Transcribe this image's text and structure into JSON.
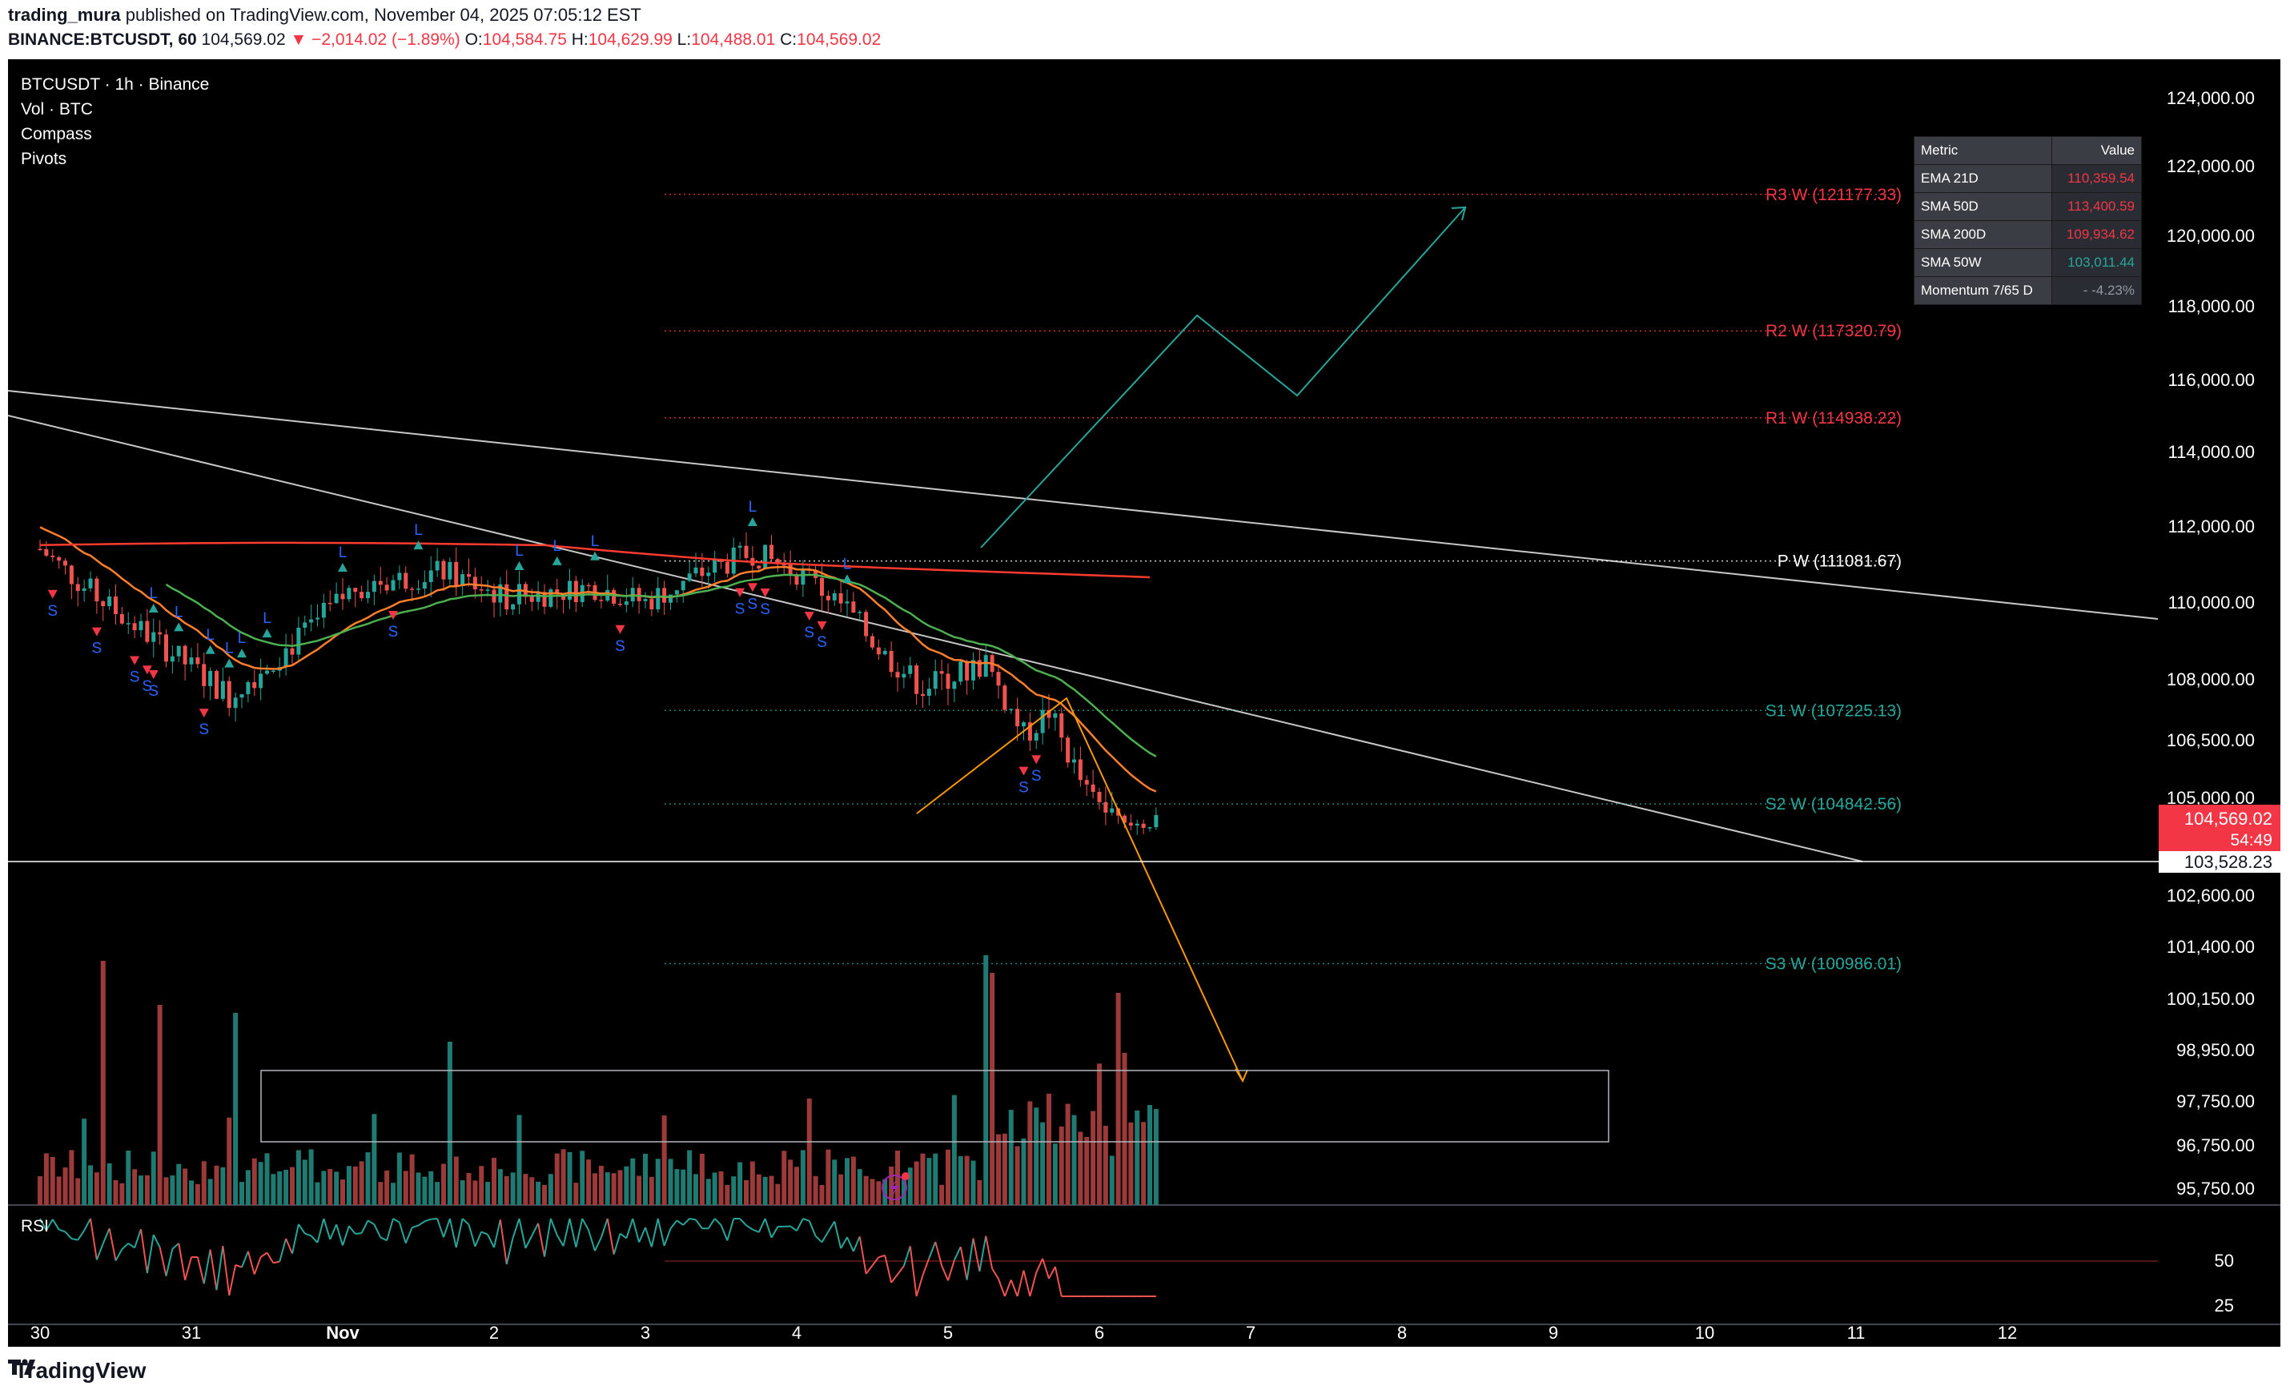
{
  "header": {
    "author": "trading_mura",
    "published_text": "published on TradingView.com, November 04, 2025 07:05:12 EST",
    "symbol": "BINANCE:BTCUSDT, 60",
    "last": "104,569.02",
    "change": "▼ −2,014.02 (−1.89%)",
    "open_label": "O:",
    "open": "104,584.75",
    "high_label": "H:",
    "high": "104,629.99",
    "low_label": "L:",
    "low": "104,488.01",
    "close_label": "C:",
    "close": "104,569.02"
  },
  "legend": {
    "title": "BTCUSDT · 1h · Binance",
    "vol": "Vol · BTC",
    "compass": "Compass",
    "pivots": "Pivots",
    "rsi": "RSI"
  },
  "metric_table": {
    "header": [
      "Metric",
      "Value"
    ],
    "rows": [
      {
        "name": "EMA 21D",
        "value": "110,359.54",
        "color": "#f23645"
      },
      {
        "name": "SMA 50D",
        "value": "113,400.59",
        "color": "#f23645"
      },
      {
        "name": "SMA 200D",
        "value": "109,934.62",
        "color": "#f23645"
      },
      {
        "name": "SMA 50W",
        "value": "103,011.44",
        "color": "#26a69a"
      },
      {
        "name": "Momentum 7/65 D",
        "value": "- -4.23%",
        "color": "#9598a1"
      }
    ]
  },
  "chart_data": {
    "type": "candlestick",
    "symbol": "BTCUSDT",
    "interval": "1h",
    "exchange": "Binance",
    "price_axis": {
      "ticks": [
        124000,
        122000,
        120000,
        118000,
        116000,
        114000,
        112000,
        110000,
        108000,
        106500,
        105000,
        102600,
        101400,
        100150,
        98950,
        97750,
        96750,
        95750
      ],
      "labels": [
        "124,000.00",
        "122,000.00",
        "120,000.00",
        "118,000.00",
        "116,000.00",
        "114,000.00",
        "112,000.00",
        "110,000.00",
        "108,000.00",
        "106,500.00",
        "105,000.00",
        "102,600.00",
        "101,400.00",
        "100,150.00",
        "98,950.00",
        "97,750.00",
        "96,750.00",
        "95,750.00"
      ]
    },
    "time_axis": [
      "30",
      "31",
      "Nov",
      "2",
      "3",
      "4",
      "5",
      "6",
      "7",
      "8",
      "9",
      "10",
      "11",
      "12"
    ],
    "last_price": "104,569.02",
    "countdown": "54:49",
    "crosshair_price": "103,528.23",
    "pivot_levels": [
      {
        "name": "R3 W",
        "value": 121177.33,
        "label": "R3 W (121177.33)",
        "color": "#f23645"
      },
      {
        "name": "R2 W",
        "value": 117320.79,
        "label": "R2 W (117320.79)",
        "color": "#f23645"
      },
      {
        "name": "R1 W",
        "value": 114938.22,
        "label": "R1 W (114938.22)",
        "color": "#f23645"
      },
      {
        "name": "P W",
        "value": 111081.67,
        "label": "P W (111081.67)",
        "color": "#ffffff"
      },
      {
        "name": "S1 W",
        "value": 107225.13,
        "label": "S1 W (107225.13)",
        "color": "#26a69a"
      },
      {
        "name": "S2 W",
        "value": 104842.56,
        "label": "S2 W (104842.56)",
        "color": "#26a69a"
      },
      {
        "name": "S3 W",
        "value": 100986.01,
        "label": "S3 W (100986.01)",
        "color": "#26a69a"
      }
    ],
    "moving_averages": [
      {
        "name": "EMA 21D",
        "color": "#f23645"
      },
      {
        "name": "Fast MA",
        "color": "#ff7f2a"
      },
      {
        "name": "Slow MA",
        "color": "#ff3b30"
      },
      {
        "name": "Trend MA",
        "color": "#4caf50"
      }
    ],
    "projections": [
      {
        "name": "bullish",
        "color": "#26a69a"
      },
      {
        "name": "bearish",
        "color": "#ff9800"
      }
    ],
    "signal_labels": {
      "long": "L",
      "short": "S"
    },
    "rsi": {
      "levels": [
        50,
        25
      ],
      "labels": [
        "50",
        "25"
      ]
    }
  },
  "footer": {
    "brand": "TradingView"
  }
}
